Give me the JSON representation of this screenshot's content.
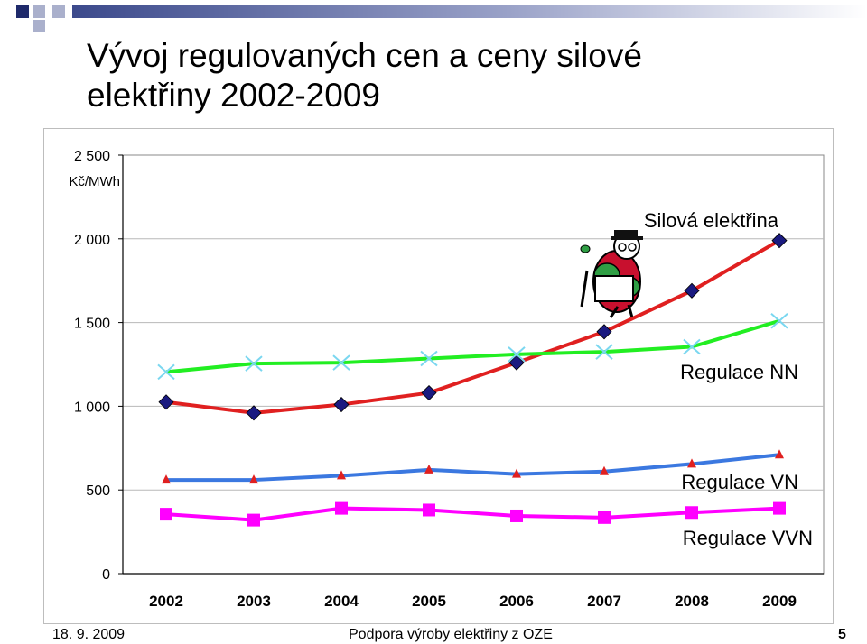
{
  "slide": {
    "title_line1": "Vývoj regulovaných cen a ceny silové",
    "title_line2": "elektřiny 2002-2009",
    "footer_date": "18. 9. 2009",
    "footer_text": "Podpora výroby elektřiny z OZE",
    "page_number": "5"
  },
  "colors": {
    "deco_dark": "#1f2a6b",
    "deco_light": "#aab0cc",
    "silova": "#e02020",
    "silova_marker": "#1a1a80",
    "nn": "#22ee22",
    "nn_marker": "#7ad7f0",
    "vn": "#3b78e0",
    "vn_marker": "#e02020",
    "vvn": "#ff00ff"
  },
  "chart_data": {
    "type": "line",
    "unit_label": "Kč/MWh",
    "categories": [
      "2002",
      "2003",
      "2004",
      "2005",
      "2006",
      "2007",
      "2008",
      "2009"
    ],
    "ylim": [
      0,
      2500
    ],
    "yticks": [
      0,
      500,
      1000,
      1500,
      2000,
      2500
    ],
    "ytick_labels": [
      "0",
      "500",
      "1 000",
      "1 500",
      "2 000",
      "2 500"
    ],
    "grid": true,
    "series": [
      {
        "name": "Silová elektřina",
        "marker": "diamond",
        "values": [
          1025,
          960,
          1010,
          1080,
          1260,
          1445,
          1690,
          1990
        ]
      },
      {
        "name": "Regulace NN",
        "marker": "x",
        "values": [
          1205,
          1255,
          1260,
          1285,
          1310,
          1325,
          1355,
          1510
        ]
      },
      {
        "name": "Regulace VN",
        "marker": "triangle",
        "values": [
          560,
          560,
          585,
          620,
          595,
          610,
          655,
          710
        ]
      },
      {
        "name": "Regulace VVN",
        "marker": "square",
        "values": [
          355,
          320,
          390,
          380,
          345,
          335,
          365,
          390
        ]
      }
    ]
  }
}
